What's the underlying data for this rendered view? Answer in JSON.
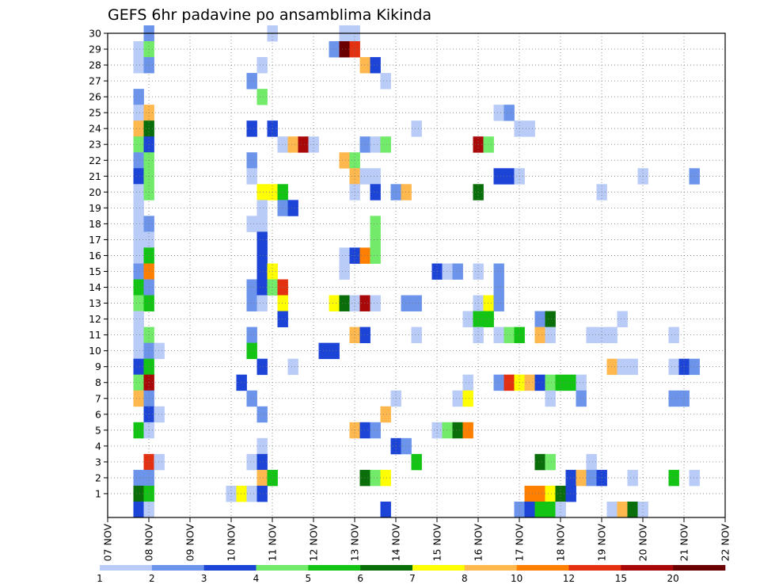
{
  "chart_data": {
    "type": "heatmap",
    "title": "GEFS 6hr padavine po ansamblima Kikinda",
    "xlabel": "",
    "ylabel": "",
    "x_tick_labels": [
      "07 NOV",
      "08 NOV",
      "09 NOV",
      "10 NOV",
      "11 NOV",
      "12 NOV",
      "13 NOV",
      "14 NOV",
      "15 NOV",
      "16 NOV",
      "17 NOV",
      "18 NOV",
      "19 NOV",
      "20 NOV",
      "21 NOV",
      "22 NOV"
    ],
    "y_tick_labels": [
      "1",
      "2",
      "3",
      "4",
      "5",
      "6",
      "7",
      "8",
      "9",
      "10",
      "11",
      "12",
      "13",
      "14",
      "15",
      "16",
      "17",
      "18",
      "19",
      "20",
      "21",
      "22",
      "23",
      "24",
      "25",
      "26",
      "27",
      "28",
      "29",
      "30"
    ],
    "grid": true,
    "colorbar": {
      "labels": [
        "1",
        "2",
        "3",
        "4",
        "5",
        "6",
        "7",
        "8",
        "10",
        "12",
        "15",
        "20"
      ],
      "colors": [
        "#b9cbf7",
        "#6b94ea",
        "#1c45d8",
        "#72eb6a",
        "#14c414",
        "#0a6e0a",
        "#ffff00",
        "#ffb84d",
        "#ff8000",
        "#e33010",
        "#a80808",
        "#6a0000"
      ]
    },
    "cells": [
      {
        "m": 30,
        "d": 8.0,
        "c": 2
      },
      {
        "m": 30,
        "d": 11.0,
        "c": 1
      },
      {
        "m": 30,
        "d": 12.75,
        "c": 1
      },
      {
        "m": 30,
        "d": 13.0,
        "c": 1
      },
      {
        "m": 29,
        "d": 7.75,
        "c": 1
      },
      {
        "m": 29,
        "d": 8.0,
        "c": 4
      },
      {
        "m": 29,
        "d": 12.5,
        "c": 2
      },
      {
        "m": 29,
        "d": 12.75,
        "c": 12
      },
      {
        "m": 29,
        "d": 13.0,
        "c": 10
      },
      {
        "m": 28,
        "d": 7.75,
        "c": 1
      },
      {
        "m": 28,
        "d": 8.0,
        "c": 2
      },
      {
        "m": 28,
        "d": 10.75,
        "c": 1
      },
      {
        "m": 28,
        "d": 13.25,
        "c": 8
      },
      {
        "m": 28,
        "d": 13.5,
        "c": 3
      },
      {
        "m": 27,
        "d": 10.5,
        "c": 2
      },
      {
        "m": 27,
        "d": 13.75,
        "c": 1
      },
      {
        "m": 26,
        "d": 7.75,
        "c": 2
      },
      {
        "m": 26,
        "d": 10.75,
        "c": 4
      },
      {
        "m": 25,
        "d": 7.75,
        "c": 1
      },
      {
        "m": 25,
        "d": 8.0,
        "c": 8
      },
      {
        "m": 25,
        "d": 16.5,
        "c": 1
      },
      {
        "m": 25,
        "d": 16.75,
        "c": 2
      },
      {
        "m": 24,
        "d": 7.75,
        "c": 8
      },
      {
        "m": 24,
        "d": 8.0,
        "c": 6
      },
      {
        "m": 24,
        "d": 10.5,
        "c": 3
      },
      {
        "m": 24,
        "d": 11.0,
        "c": 3
      },
      {
        "m": 24,
        "d": 14.5,
        "c": 1
      },
      {
        "m": 24,
        "d": 17.0,
        "c": 1
      },
      {
        "m": 24,
        "d": 17.25,
        "c": 1
      },
      {
        "m": 23,
        "d": 7.75,
        "c": 4
      },
      {
        "m": 23,
        "d": 8.0,
        "c": 3
      },
      {
        "m": 23,
        "d": 11.25,
        "c": 1
      },
      {
        "m": 23,
        "d": 11.5,
        "c": 8
      },
      {
        "m": 23,
        "d": 11.75,
        "c": 11
      },
      {
        "m": 23,
        "d": 12.0,
        "c": 1
      },
      {
        "m": 23,
        "d": 13.25,
        "c": 2
      },
      {
        "m": 23,
        "d": 13.5,
        "c": 1
      },
      {
        "m": 23,
        "d": 13.75,
        "c": 4
      },
      {
        "m": 23,
        "d": 16.0,
        "c": 11
      },
      {
        "m": 23,
        "d": 16.25,
        "c": 4
      },
      {
        "m": 22,
        "d": 7.75,
        "c": 2
      },
      {
        "m": 22,
        "d": 8.0,
        "c": 4
      },
      {
        "m": 22,
        "d": 10.5,
        "c": 2
      },
      {
        "m": 22,
        "d": 12.75,
        "c": 8
      },
      {
        "m": 22,
        "d": 13.0,
        "c": 4
      },
      {
        "m": 21,
        "d": 7.75,
        "c": 3
      },
      {
        "m": 21,
        "d": 8.0,
        "c": 4
      },
      {
        "m": 21,
        "d": 10.5,
        "c": 1
      },
      {
        "m": 21,
        "d": 13.0,
        "c": 8
      },
      {
        "m": 21,
        "d": 13.25,
        "c": 1
      },
      {
        "m": 21,
        "d": 13.5,
        "c": 1
      },
      {
        "m": 21,
        "d": 16.5,
        "c": 3
      },
      {
        "m": 21,
        "d": 16.75,
        "c": 3
      },
      {
        "m": 21,
        "d": 17.0,
        "c": 1
      },
      {
        "m": 21,
        "d": 20.0,
        "c": 1
      },
      {
        "m": 21,
        "d": 21.25,
        "c": 2
      },
      {
        "m": 20,
        "d": 7.75,
        "c": 1
      },
      {
        "m": 20,
        "d": 8.0,
        "c": 4
      },
      {
        "m": 20,
        "d": 10.75,
        "c": 7
      },
      {
        "m": 20,
        "d": 11.0,
        "c": 7
      },
      {
        "m": 20,
        "d": 11.25,
        "c": 5
      },
      {
        "m": 20,
        "d": 13.0,
        "c": 1
      },
      {
        "m": 20,
        "d": 13.5,
        "c": 3
      },
      {
        "m": 20,
        "d": 14.0,
        "c": 2
      },
      {
        "m": 20,
        "d": 14.25,
        "c": 8
      },
      {
        "m": 20,
        "d": 16.0,
        "c": 6
      },
      {
        "m": 20,
        "d": 19.0,
        "c": 1
      },
      {
        "m": 19,
        "d": 7.75,
        "c": 1
      },
      {
        "m": 19,
        "d": 10.75,
        "c": 1
      },
      {
        "m": 19,
        "d": 11.25,
        "c": 2
      },
      {
        "m": 19,
        "d": 11.5,
        "c": 3
      },
      {
        "m": 18,
        "d": 7.75,
        "c": 1
      },
      {
        "m": 18,
        "d": 8.0,
        "c": 2
      },
      {
        "m": 18,
        "d": 10.5,
        "c": 1
      },
      {
        "m": 18,
        "d": 10.75,
        "c": 1
      },
      {
        "m": 18,
        "d": 13.5,
        "c": 4
      },
      {
        "m": 17,
        "d": 7.75,
        "c": 1
      },
      {
        "m": 17,
        "d": 8.0,
        "c": 1
      },
      {
        "m": 17,
        "d": 10.75,
        "c": 3
      },
      {
        "m": 17,
        "d": 13.5,
        "c": 4
      },
      {
        "m": 16,
        "d": 7.75,
        "c": 1
      },
      {
        "m": 16,
        "d": 8.0,
        "c": 5
      },
      {
        "m": 16,
        "d": 10.75,
        "c": 3
      },
      {
        "m": 16,
        "d": 12.75,
        "c": 1
      },
      {
        "m": 16,
        "d": 13.0,
        "c": 3
      },
      {
        "m": 16,
        "d": 13.25,
        "c": 9
      },
      {
        "m": 16,
        "d": 13.5,
        "c": 4
      },
      {
        "m": 15,
        "d": 7.75,
        "c": 2
      },
      {
        "m": 15,
        "d": 8.0,
        "c": 9
      },
      {
        "m": 15,
        "d": 10.75,
        "c": 3
      },
      {
        "m": 15,
        "d": 11.0,
        "c": 7
      },
      {
        "m": 15,
        "d": 12.75,
        "c": 1
      },
      {
        "m": 15,
        "d": 15.0,
        "c": 3
      },
      {
        "m": 15,
        "d": 15.25,
        "c": 1
      },
      {
        "m": 15,
        "d": 15.5,
        "c": 2
      },
      {
        "m": 15,
        "d": 16.0,
        "c": 1
      },
      {
        "m": 15,
        "d": 16.5,
        "c": 2
      },
      {
        "m": 14,
        "d": 7.75,
        "c": 5
      },
      {
        "m": 14,
        "d": 8.0,
        "c": 2
      },
      {
        "m": 14,
        "d": 10.5,
        "c": 2
      },
      {
        "m": 14,
        "d": 10.75,
        "c": 3
      },
      {
        "m": 14,
        "d": 11.0,
        "c": 4
      },
      {
        "m": 14,
        "d": 11.25,
        "c": 10
      },
      {
        "m": 14,
        "d": 16.5,
        "c": 2
      },
      {
        "m": 13,
        "d": 7.75,
        "c": 4
      },
      {
        "m": 13,
        "d": 8.0,
        "c": 5
      },
      {
        "m": 13,
        "d": 10.5,
        "c": 2
      },
      {
        "m": 13,
        "d": 10.75,
        "c": 1
      },
      {
        "m": 13,
        "d": 11.25,
        "c": 7
      },
      {
        "m": 13,
        "d": 12.5,
        "c": 7
      },
      {
        "m": 13,
        "d": 12.75,
        "c": 6
      },
      {
        "m": 13,
        "d": 13.0,
        "c": 1
      },
      {
        "m": 13,
        "d": 13.25,
        "c": 11
      },
      {
        "m": 13,
        "d": 13.5,
        "c": 1
      },
      {
        "m": 13,
        "d": 14.25,
        "c": 2
      },
      {
        "m": 13,
        "d": 14.5,
        "c": 2
      },
      {
        "m": 13,
        "d": 16.0,
        "c": 1
      },
      {
        "m": 13,
        "d": 16.25,
        "c": 7
      },
      {
        "m": 13,
        "d": 16.5,
        "c": 2
      },
      {
        "m": 12,
        "d": 7.75,
        "c": 1
      },
      {
        "m": 12,
        "d": 11.25,
        "c": 3
      },
      {
        "m": 12,
        "d": 15.75,
        "c": 1
      },
      {
        "m": 12,
        "d": 16.0,
        "c": 5
      },
      {
        "m": 12,
        "d": 16.25,
        "c": 5
      },
      {
        "m": 12,
        "d": 17.5,
        "c": 2
      },
      {
        "m": 12,
        "d": 17.75,
        "c": 6
      },
      {
        "m": 12,
        "d": 19.5,
        "c": 1
      },
      {
        "m": 11,
        "d": 7.75,
        "c": 1
      },
      {
        "m": 11,
        "d": 8.0,
        "c": 4
      },
      {
        "m": 11,
        "d": 10.5,
        "c": 2
      },
      {
        "m": 11,
        "d": 13.0,
        "c": 8
      },
      {
        "m": 11,
        "d": 13.25,
        "c": 3
      },
      {
        "m": 11,
        "d": 14.5,
        "c": 1
      },
      {
        "m": 11,
        "d": 16.0,
        "c": 1
      },
      {
        "m": 11,
        "d": 16.5,
        "c": 1
      },
      {
        "m": 11,
        "d": 16.75,
        "c": 4
      },
      {
        "m": 11,
        "d": 17.0,
        "c": 5
      },
      {
        "m": 11,
        "d": 17.5,
        "c": 8
      },
      {
        "m": 11,
        "d": 17.75,
        "c": 1
      },
      {
        "m": 11,
        "d": 18.75,
        "c": 1
      },
      {
        "m": 11,
        "d": 19.0,
        "c": 1
      },
      {
        "m": 11,
        "d": 19.25,
        "c": 1
      },
      {
        "m": 11,
        "d": 20.75,
        "c": 1
      },
      {
        "m": 10,
        "d": 7.75,
        "c": 1
      },
      {
        "m": 10,
        "d": 8.0,
        "c": 2
      },
      {
        "m": 10,
        "d": 8.25,
        "c": 1
      },
      {
        "m": 10,
        "d": 10.5,
        "c": 5
      },
      {
        "m": 10,
        "d": 12.25,
        "c": 3
      },
      {
        "m": 10,
        "d": 12.5,
        "c": 3
      },
      {
        "m": 9,
        "d": 7.75,
        "c": 3
      },
      {
        "m": 9,
        "d": 8.0,
        "c": 5
      },
      {
        "m": 9,
        "d": 10.75,
        "c": 3
      },
      {
        "m": 9,
        "d": 11.5,
        "c": 1
      },
      {
        "m": 9,
        "d": 19.25,
        "c": 8
      },
      {
        "m": 9,
        "d": 19.5,
        "c": 1
      },
      {
        "m": 9,
        "d": 19.75,
        "c": 1
      },
      {
        "m": 9,
        "d": 20.75,
        "c": 1
      },
      {
        "m": 9,
        "d": 21.0,
        "c": 3
      },
      {
        "m": 9,
        "d": 21.25,
        "c": 2
      },
      {
        "m": 8,
        "d": 7.75,
        "c": 4
      },
      {
        "m": 8,
        "d": 8.0,
        "c": 11
      },
      {
        "m": 8,
        "d": 10.25,
        "c": 3
      },
      {
        "m": 8,
        "d": 15.75,
        "c": 1
      },
      {
        "m": 8,
        "d": 16.5,
        "c": 2
      },
      {
        "m": 8,
        "d": 16.75,
        "c": 10
      },
      {
        "m": 8,
        "d": 17.0,
        "c": 7
      },
      {
        "m": 8,
        "d": 17.25,
        "c": 8
      },
      {
        "m": 8,
        "d": 17.5,
        "c": 3
      },
      {
        "m": 8,
        "d": 17.75,
        "c": 4
      },
      {
        "m": 8,
        "d": 18.0,
        "c": 5
      },
      {
        "m": 8,
        "d": 18.25,
        "c": 5
      },
      {
        "m": 8,
        "d": 18.5,
        "c": 1
      },
      {
        "m": 7,
        "d": 7.75,
        "c": 8
      },
      {
        "m": 7,
        "d": 8.0,
        "c": 2
      },
      {
        "m": 7,
        "d": 10.5,
        "c": 2
      },
      {
        "m": 7,
        "d": 14.0,
        "c": 1
      },
      {
        "m": 7,
        "d": 15.5,
        "c": 1
      },
      {
        "m": 7,
        "d": 15.75,
        "c": 7
      },
      {
        "m": 7,
        "d": 17.75,
        "c": 1
      },
      {
        "m": 7,
        "d": 18.5,
        "c": 2
      },
      {
        "m": 7,
        "d": 20.75,
        "c": 2
      },
      {
        "m": 7,
        "d": 21.0,
        "c": 2
      },
      {
        "m": 6,
        "d": 8.0,
        "c": 3
      },
      {
        "m": 6,
        "d": 8.25,
        "c": 1
      },
      {
        "m": 6,
        "d": 10.75,
        "c": 2
      },
      {
        "m": 6,
        "d": 13.75,
        "c": 8
      },
      {
        "m": 5,
        "d": 7.75,
        "c": 5
      },
      {
        "m": 5,
        "d": 8.0,
        "c": 1
      },
      {
        "m": 5,
        "d": 13.0,
        "c": 8
      },
      {
        "m": 5,
        "d": 13.25,
        "c": 3
      },
      {
        "m": 5,
        "d": 13.5,
        "c": 2
      },
      {
        "m": 5,
        "d": 15.0,
        "c": 1
      },
      {
        "m": 5,
        "d": 15.25,
        "c": 4
      },
      {
        "m": 5,
        "d": 15.5,
        "c": 6
      },
      {
        "m": 5,
        "d": 15.75,
        "c": 9
      },
      {
        "m": 4,
        "d": 10.75,
        "c": 1
      },
      {
        "m": 4,
        "d": 14.0,
        "c": 3
      },
      {
        "m": 4,
        "d": 14.25,
        "c": 2
      },
      {
        "m": 3,
        "d": 8.0,
        "c": 10
      },
      {
        "m": 3,
        "d": 8.25,
        "c": 1
      },
      {
        "m": 3,
        "d": 10.5,
        "c": 1
      },
      {
        "m": 3,
        "d": 10.75,
        "c": 3
      },
      {
        "m": 3,
        "d": 14.5,
        "c": 5
      },
      {
        "m": 3,
        "d": 17.5,
        "c": 6
      },
      {
        "m": 3,
        "d": 17.75,
        "c": 4
      },
      {
        "m": 3,
        "d": 18.75,
        "c": 1
      },
      {
        "m": 2,
        "d": 7.75,
        "c": 2
      },
      {
        "m": 2,
        "d": 8.0,
        "c": 2
      },
      {
        "m": 2,
        "d": 10.75,
        "c": 8
      },
      {
        "m": 2,
        "d": 11.0,
        "c": 5
      },
      {
        "m": 2,
        "d": 13.25,
        "c": 6
      },
      {
        "m": 2,
        "d": 13.5,
        "c": 4
      },
      {
        "m": 2,
        "d": 13.75,
        "c": 7
      },
      {
        "m": 2,
        "d": 18.25,
        "c": 3
      },
      {
        "m": 2,
        "d": 18.5,
        "c": 8
      },
      {
        "m": 2,
        "d": 18.75,
        "c": 2
      },
      {
        "m": 2,
        "d": 19.0,
        "c": 3
      },
      {
        "m": 2,
        "d": 19.75,
        "c": 1
      },
      {
        "m": 2,
        "d": 20.75,
        "c": 5
      },
      {
        "m": 2,
        "d": 21.25,
        "c": 1
      },
      {
        "m": 1,
        "d": 7.75,
        "c": 6
      },
      {
        "m": 1,
        "d": 8.0,
        "c": 5
      },
      {
        "m": 1,
        "d": 10.0,
        "c": 1
      },
      {
        "m": 1,
        "d": 10.25,
        "c": 7
      },
      {
        "m": 1,
        "d": 10.5,
        "c": 1
      },
      {
        "m": 1,
        "d": 10.75,
        "c": 3
      },
      {
        "m": 1,
        "d": 17.25,
        "c": 9
      },
      {
        "m": 1,
        "d": 17.5,
        "c": 9
      },
      {
        "m": 1,
        "d": 17.75,
        "c": 7
      },
      {
        "m": 1,
        "d": 18.0,
        "c": 6
      },
      {
        "m": 1,
        "d": 18.25,
        "c": 3
      },
      {
        "m": 0,
        "d": 7.75,
        "c": 3
      },
      {
        "m": 0,
        "d": 8.0,
        "c": 1
      },
      {
        "m": 0,
        "d": 13.75,
        "c": 3
      },
      {
        "m": 0,
        "d": 17.0,
        "c": 2
      },
      {
        "m": 0,
        "d": 17.25,
        "c": 3
      },
      {
        "m": 0,
        "d": 17.5,
        "c": 5
      },
      {
        "m": 0,
        "d": 17.75,
        "c": 5
      },
      {
        "m": 0,
        "d": 18.0,
        "c": 1
      },
      {
        "m": 0,
        "d": 19.25,
        "c": 1
      },
      {
        "m": 0,
        "d": 19.5,
        "c": 8
      },
      {
        "m": 0,
        "d": 19.75,
        "c": 6
      },
      {
        "m": 0,
        "d": 20.0,
        "c": 1
      }
    ]
  }
}
